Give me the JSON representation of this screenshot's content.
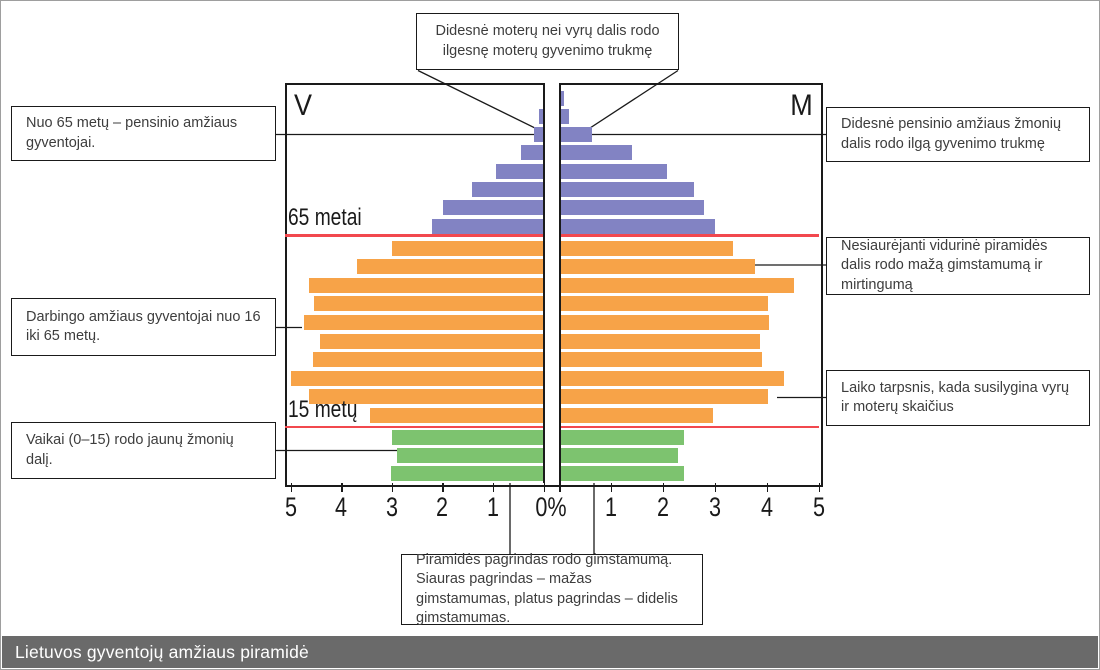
{
  "title_bar": {
    "text": "Lietuvos gyventojų amžiaus piramidė",
    "bg_color": "#6a6a6a",
    "text_color": "#ffffff"
  },
  "chart_data": {
    "type": "bar",
    "variant": "population-pyramid",
    "left_label": "V",
    "right_label": "M",
    "center_tick_label": "0%",
    "x_ticks_left": [
      "5",
      "4",
      "3",
      "2",
      "1"
    ],
    "x_ticks_right": [
      "1",
      "2",
      "3",
      "4",
      "5"
    ],
    "axis_range_percent": [
      0,
      5
    ],
    "divider_color": "#f2484e",
    "groups": [
      {
        "name": "pensioners-65-plus",
        "line_label": "65 metai",
        "color": "#8283c3",
        "rows": [
          {
            "left": 0.0,
            "right": 0.1
          },
          {
            "left": 0.08,
            "right": 0.2
          },
          {
            "left": 0.18,
            "right": 0.63
          },
          {
            "left": 0.45,
            "right": 1.4
          },
          {
            "left": 0.93,
            "right": 2.09
          },
          {
            "left": 1.42,
            "right": 2.6
          },
          {
            "left": 1.98,
            "right": 2.8
          },
          {
            "left": 2.21,
            "right": 3.0
          }
        ]
      },
      {
        "name": "working-age-16-65",
        "line_label": "15 metų",
        "color": "#f7a348",
        "rows": [
          {
            "left": 3.0,
            "right": 3.36
          },
          {
            "left": 3.68,
            "right": 3.77
          },
          {
            "left": 4.64,
            "right": 4.52
          },
          {
            "left": 4.53,
            "right": 4.02
          },
          {
            "left": 4.74,
            "right": 4.04
          },
          {
            "left": 4.41,
            "right": 3.88
          },
          {
            "left": 4.55,
            "right": 3.92
          },
          {
            "left": 5.0,
            "right": 4.34
          },
          {
            "left": 4.64,
            "right": 4.02
          },
          {
            "left": 3.42,
            "right": 2.96
          }
        ]
      },
      {
        "name": "children-0-15",
        "line_label": "",
        "color": "#7dc36f",
        "rows": [
          {
            "left": 3.0,
            "right": 2.4
          },
          {
            "left": 2.89,
            "right": 2.3
          },
          {
            "left": 3.02,
            "right": 2.4
          }
        ]
      }
    ]
  },
  "annotations": {
    "top": {
      "text": "Didesnė moterų nei vyrų dalis rodo ilgesnę moterų gyvenimo trukmę"
    },
    "left": [
      {
        "text": "Nuo 65 metų – pensinio amžiaus gyventojai."
      },
      {
        "text": "Darbingo amžiaus gyventojai nuo 16 iki 65 metų."
      },
      {
        "text": "Vaikai (0–15) rodo jaunų žmonių dalį."
      }
    ],
    "right": [
      {
        "text": "Didesnė pensinio amžiaus žmonių dalis rodo ilgą gyvenimo trukmę"
      },
      {
        "text": "Nesiaurėjanti vidurinė piramidės dalis rodo mažą gimstamumą ir mirtingumą"
      },
      {
        "text": "Laiko tarpsnis, kada susilygina vyrų ir moterų skaičius"
      }
    ],
    "bottom": {
      "text": "Piramidės pagrindas rodo gimstamumą. Siauras pagrindas – mažas gimstamumas, platus pagrindas – didelis gimstamumas."
    }
  }
}
